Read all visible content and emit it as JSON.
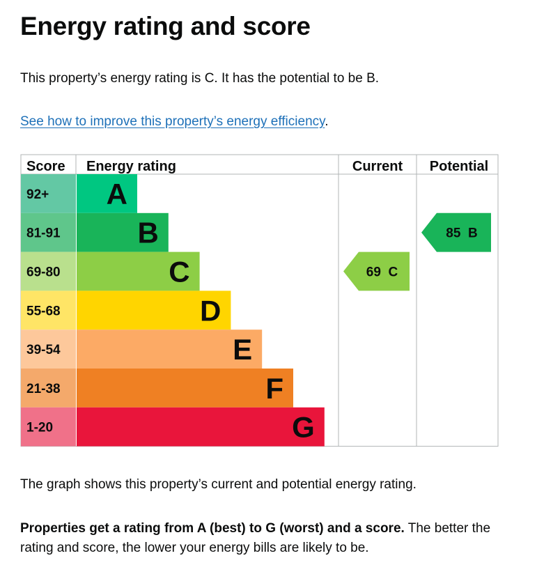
{
  "page": {
    "title": "Energy rating and score",
    "intro": "This property’s energy rating is C. It has the potential to be B.",
    "improve_link": "See how to improve this property’s energy efficiency",
    "improve_suffix": ".",
    "description": "The graph shows this property’s current and potential energy rating.",
    "summary_bold": "Properties get a rating from A (best) to G (worst) and a score.",
    "summary_rest": " The better the rating and score, the lower your energy bills are likely to be."
  },
  "chart_data": {
    "type": "bar",
    "columns": {
      "score": "Score",
      "rating": "Energy rating",
      "current": "Current",
      "potential": "Potential"
    },
    "bands": [
      {
        "letter": "A",
        "score_range": "92+",
        "color": "#00c781",
        "score_color": "#63c8a4"
      },
      {
        "letter": "B",
        "score_range": "81-91",
        "color": "#19b459",
        "score_color": "#5fc68b"
      },
      {
        "letter": "C",
        "score_range": "69-80",
        "color": "#8dce46",
        "score_color": "#b9e08d"
      },
      {
        "letter": "D",
        "score_range": "55-68",
        "color": "#ffd500",
        "score_color": "#ffe566"
      },
      {
        "letter": "E",
        "score_range": "39-54",
        "color": "#fcaa65",
        "score_color": "#fdc89b"
      },
      {
        "letter": "F",
        "score_range": "21-38",
        "color": "#ef8023",
        "score_color": "#f4a96b"
      },
      {
        "letter": "G",
        "score_range": "1-20",
        "color": "#e9153b",
        "score_color": "#f07189"
      }
    ],
    "current": {
      "score": 69,
      "band": "C",
      "label": "69 C",
      "color": "#8dce46"
    },
    "potential": {
      "score": 85,
      "band": "B",
      "label": "85 B",
      "color": "#19b459"
    }
  }
}
